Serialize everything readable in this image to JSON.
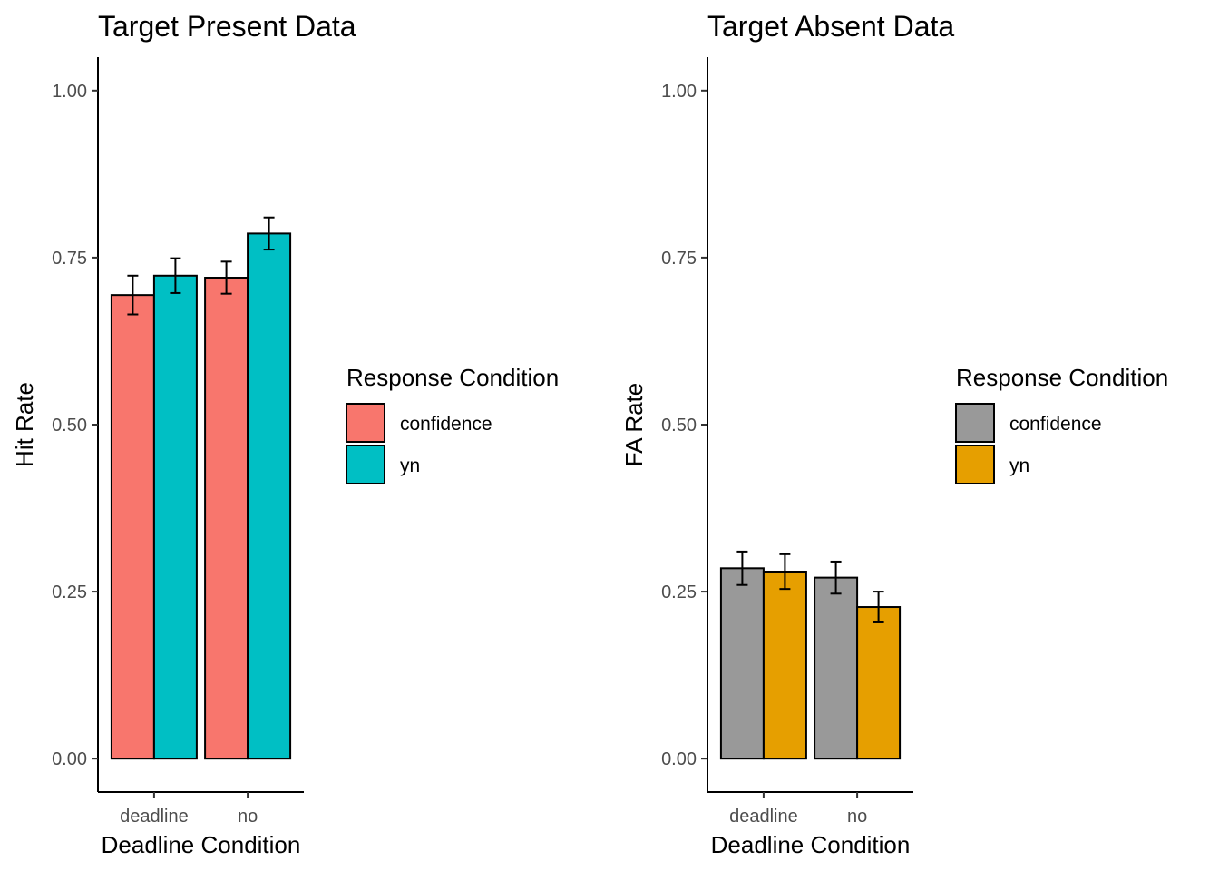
{
  "chart_data": [
    {
      "type": "bar",
      "title": "Target Present Data",
      "xlabel": "Deadline Condition",
      "ylabel": "Hit Rate",
      "categories": [
        "deadline",
        "no"
      ],
      "ylim": [
        -0.05,
        1.05
      ],
      "yticks": [
        0.0,
        0.25,
        0.5,
        0.75,
        1.0
      ],
      "ytick_labels": [
        "0.00",
        "0.25",
        "0.50",
        "0.75",
        "1.00"
      ],
      "grid": false,
      "legend": {
        "title": "Response Condition",
        "position": "right"
      },
      "series": [
        {
          "name": "confidence",
          "color": "#F8766D",
          "values": [
            0.694,
            0.72
          ],
          "err_low": [
            0.665,
            0.696
          ],
          "err_high": [
            0.723,
            0.744
          ]
        },
        {
          "name": "yn",
          "color": "#00BFC4",
          "values": [
            0.723,
            0.786
          ],
          "err_low": [
            0.697,
            0.762
          ],
          "err_high": [
            0.749,
            0.81
          ]
        }
      ]
    },
    {
      "type": "bar",
      "title": "Target Absent Data",
      "xlabel": "Deadline Condition",
      "ylabel": "FA Rate",
      "categories": [
        "deadline",
        "no"
      ],
      "ylim": [
        -0.05,
        1.05
      ],
      "yticks": [
        0.0,
        0.25,
        0.5,
        0.75,
        1.0
      ],
      "ytick_labels": [
        "0.00",
        "0.25",
        "0.50",
        "0.75",
        "1.00"
      ],
      "grid": false,
      "legend": {
        "title": "Response Condition",
        "position": "right"
      },
      "series": [
        {
          "name": "confidence",
          "color": "#999999",
          "values": [
            0.285,
            0.271
          ],
          "err_low": [
            0.26,
            0.247
          ],
          "err_high": [
            0.31,
            0.295
          ]
        },
        {
          "name": "yn",
          "color": "#E69F00",
          "values": [
            0.28,
            0.227
          ],
          "err_low": [
            0.254,
            0.204
          ],
          "err_high": [
            0.306,
            0.25
          ]
        }
      ]
    }
  ]
}
